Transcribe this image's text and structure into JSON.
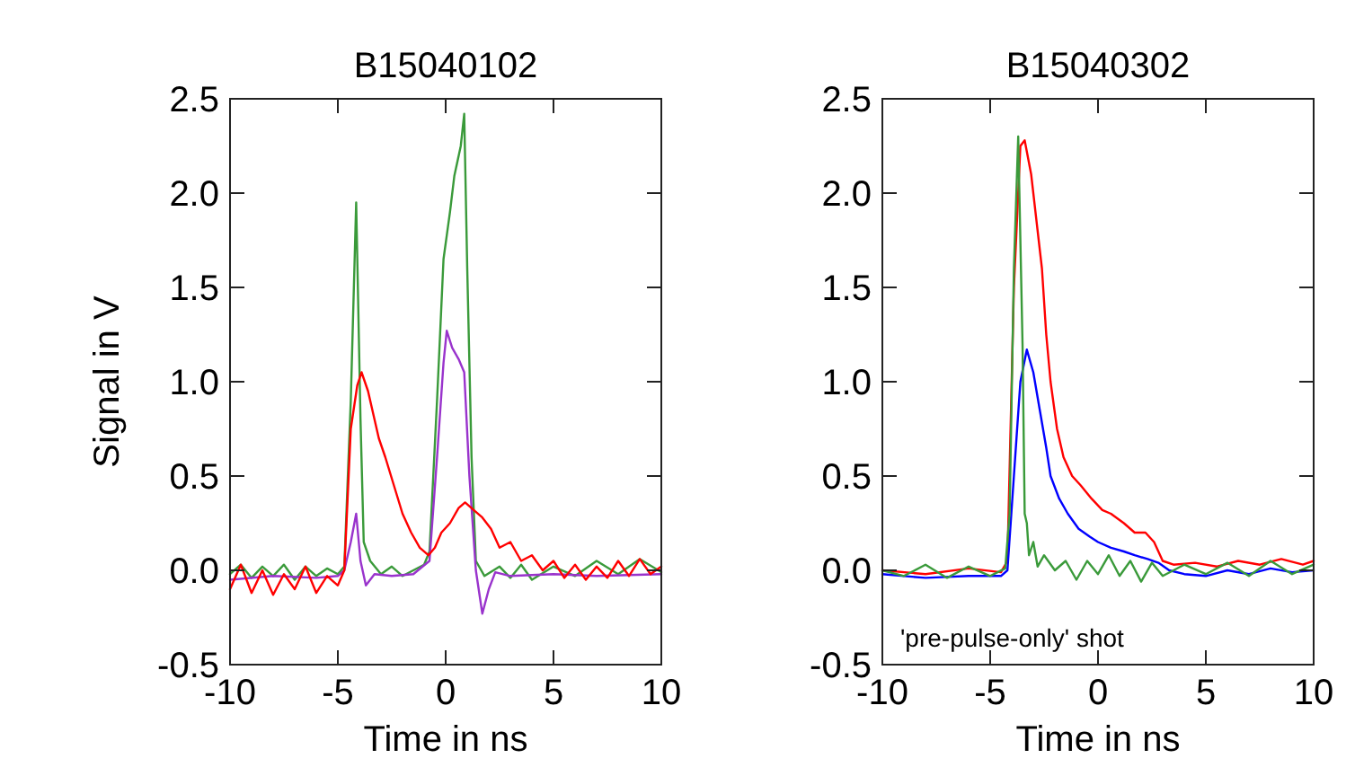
{
  "chart_data": [
    {
      "type": "line",
      "title": "B15040102",
      "xlabel": "Time in ns",
      "ylabel": "Signal in V",
      "xlim": [
        -10,
        10
      ],
      "ylim": [
        -0.5,
        2.5
      ],
      "xticks": [
        -10,
        -5,
        0,
        5,
        10
      ],
      "yticks": [
        -0.5,
        {
          "value": 0,
          "label": "0.0"
        },
        0.5,
        {
          "value": 1,
          "label": "1.0"
        },
        1.5,
        {
          "value": 2,
          "label": "2.0"
        },
        2.5
      ],
      "series": [
        {
          "color": "#3a9a3a",
          "x": [
            -10,
            -9.5,
            -9,
            -8.5,
            -8,
            -7.5,
            -7,
            -6.5,
            -6,
            -5.5,
            -5,
            -4.7,
            -4.4,
            -4.15,
            -3.95,
            -3.8,
            -3.5,
            -3,
            -2.5,
            -2,
            -1.5,
            -1,
            -0.75,
            -0.4,
            -0.1,
            0.2,
            0.4,
            0.7,
            0.86,
            1.0,
            1.2,
            1.4,
            1.8,
            2.5,
            3,
            3.5,
            4,
            5,
            6,
            7,
            8,
            9,
            10
          ],
          "values": [
            -0.02,
            0.03,
            -0.04,
            0.02,
            -0.03,
            0.03,
            -0.05,
            0.02,
            -0.03,
            0.01,
            -0.02,
            0.02,
            0.9,
            1.95,
            0.8,
            0.15,
            0.05,
            -0.02,
            0.02,
            -0.03,
            0.0,
            0.03,
            0.1,
            0.9,
            1.65,
            1.9,
            2.09,
            2.25,
            2.42,
            1.6,
            0.6,
            0.05,
            -0.03,
            0.02,
            -0.04,
            0.03,
            -0.05,
            0.02,
            -0.03,
            0.05,
            -0.02,
            0.06,
            -0.01
          ]
        },
        {
          "color": "#9933cc",
          "x": [
            -10,
            -8,
            -6,
            -5,
            -4.7,
            -4.4,
            -4.15,
            -3.95,
            -3.7,
            -3.3,
            -2.5,
            -1.5,
            -0.75,
            -0.4,
            -0.1,
            0.05,
            0.3,
            0.6,
            0.86,
            1.1,
            1.4,
            1.7,
            2.0,
            2.3,
            3,
            5,
            7,
            10
          ],
          "values": [
            -0.05,
            -0.03,
            -0.04,
            -0.03,
            0.0,
            0.15,
            0.3,
            0.05,
            -0.08,
            -0.02,
            -0.03,
            -0.02,
            0.05,
            0.6,
            1.1,
            1.27,
            1.18,
            1.12,
            1.05,
            0.5,
            0.0,
            -0.23,
            -0.1,
            -0.01,
            -0.03,
            -0.02,
            -0.03,
            -0.02
          ]
        },
        {
          "color": "#ff0000",
          "x": [
            -10,
            -9.5,
            -9,
            -8.5,
            -8,
            -7.5,
            -7,
            -6.5,
            -6,
            -5.5,
            -5,
            -4.7,
            -4.4,
            -4.1,
            -3.9,
            -3.6,
            -3.3,
            -3.1,
            -2.8,
            -2.4,
            -2,
            -1.6,
            -1.2,
            -0.8,
            -0.5,
            -0.2,
            0.2,
            0.6,
            0.9,
            1.3,
            1.7,
            2.1,
            2.5,
            3,
            3.5,
            4,
            4.5,
            5,
            5.5,
            6,
            6.5,
            7,
            7.5,
            8,
            8.5,
            9,
            9.5,
            10
          ],
          "values": [
            -0.1,
            0.03,
            -0.12,
            0.0,
            -0.13,
            -0.02,
            -0.1,
            0.02,
            -0.12,
            -0.03,
            -0.08,
            0.0,
            0.75,
            0.98,
            1.05,
            0.95,
            0.8,
            0.7,
            0.6,
            0.45,
            0.3,
            0.2,
            0.12,
            0.08,
            0.12,
            0.2,
            0.25,
            0.33,
            0.36,
            0.32,
            0.28,
            0.22,
            0.12,
            0.15,
            0.05,
            0.08,
            0.0,
            0.05,
            -0.04,
            0.03,
            -0.05,
            0.02,
            -0.04,
            0.05,
            -0.03,
            0.06,
            -0.02,
            0.02
          ]
        }
      ]
    },
    {
      "type": "line",
      "title": "B15040302",
      "xlabel": "Time in ns",
      "xlim": [
        -10,
        10
      ],
      "ylim": [
        -0.5,
        2.5
      ],
      "xticks": [
        -10,
        -5,
        0,
        5,
        10
      ],
      "yticks": [
        -0.5,
        {
          "value": 0,
          "label": "0.0"
        },
        0.5,
        {
          "value": 1,
          "label": "1.0"
        },
        1.5,
        {
          "value": 2,
          "label": "2.0"
        },
        2.5
      ],
      "annotations": [
        "'pre-pulse-only' shot"
      ],
      "series": [
        {
          "color": "#ff0000",
          "x": [
            -10,
            -8,
            -6,
            -4.5,
            -4.2,
            -3.9,
            -3.6,
            -3.4,
            -3.1,
            -2.8,
            -2.6,
            -2.4,
            -2.2,
            -1.9,
            -1.6,
            -1.2,
            -0.8,
            -0.3,
            0.2,
            0.6,
            1.2,
            1.7,
            2.2,
            2.6,
            3.0,
            3.5,
            4.5,
            5.5,
            6.5,
            7.5,
            8.5,
            9.5,
            10
          ],
          "values": [
            0.0,
            -0.02,
            0.01,
            -0.01,
            0.05,
            1.5,
            2.25,
            2.28,
            2.1,
            1.8,
            1.6,
            1.25,
            1.0,
            0.75,
            0.6,
            0.5,
            0.45,
            0.38,
            0.32,
            0.3,
            0.25,
            0.2,
            0.2,
            0.15,
            0.05,
            0.03,
            0.04,
            0.02,
            0.05,
            0.03,
            0.06,
            0.03,
            0.05
          ]
        },
        {
          "color": "#0000ff",
          "x": [
            -10,
            -8,
            -6,
            -4.5,
            -4.2,
            -3.9,
            -3.6,
            -3.3,
            -3.0,
            -2.7,
            -2.4,
            -2.2,
            -1.8,
            -1.4,
            -0.9,
            -0.4,
            0,
            0.6,
            1.2,
            1.7,
            2.3,
            2.8,
            3.3,
            4,
            5,
            6,
            7,
            8,
            9,
            10
          ],
          "values": [
            -0.02,
            -0.04,
            -0.03,
            -0.03,
            0.0,
            0.5,
            1.0,
            1.17,
            1.05,
            0.85,
            0.65,
            0.5,
            0.38,
            0.3,
            0.22,
            0.18,
            0.15,
            0.12,
            0.1,
            0.08,
            0.06,
            0.04,
            0.0,
            -0.02,
            -0.03,
            0.0,
            -0.02,
            0.01,
            -0.01,
            0.0
          ]
        },
        {
          "color": "#3a9a3a",
          "x": [
            -10,
            -9,
            -8,
            -7,
            -6,
            -5,
            -4.3,
            -4.1,
            -3.9,
            -3.7,
            -3.5,
            -3.4,
            -3.3,
            -3.2,
            -3,
            -2.8,
            -2.5,
            -2,
            -1.5,
            -1,
            -0.5,
            0,
            0.5,
            1,
            1.5,
            2,
            2.5,
            3,
            4,
            5,
            6,
            7,
            8,
            9,
            10
          ],
          "values": [
            0.0,
            -0.03,
            0.03,
            -0.04,
            0.02,
            -0.03,
            0.01,
            0.3,
            1.6,
            2.3,
            1.2,
            0.3,
            0.25,
            0.08,
            0.15,
            0.02,
            0.08,
            0.0,
            0.05,
            -0.05,
            0.05,
            -0.02,
            0.08,
            -0.03,
            0.05,
            -0.06,
            0.04,
            -0.03,
            0.03,
            -0.02,
            0.04,
            -0.03,
            0.05,
            -0.02,
            0.03
          ]
        }
      ]
    }
  ]
}
